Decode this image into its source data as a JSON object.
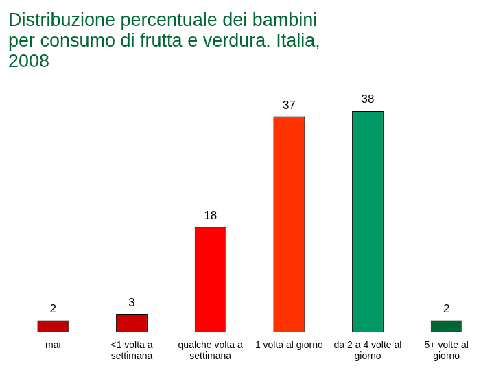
{
  "chart_data": {
    "type": "bar",
    "title": "Distribuzione percentuale dei bambini per consumo di frutta e verdura. Italia, 2008",
    "categories": [
      "mai",
      "<1 volta a settimana",
      "qualche volta a settimana",
      "1 volta al giorno",
      "da 2 a 4 volte al giorno",
      "5+ volte al giorno"
    ],
    "values": [
      2,
      3,
      18,
      37,
      38,
      2
    ],
    "colors": [
      "#c00000",
      "#cc0000",
      "#ff0000",
      "#ff3300",
      "#009966",
      "#006633"
    ],
    "ylim": [
      0,
      40
    ],
    "grid": false,
    "data_labels": true,
    "tick_labels": "x"
  }
}
